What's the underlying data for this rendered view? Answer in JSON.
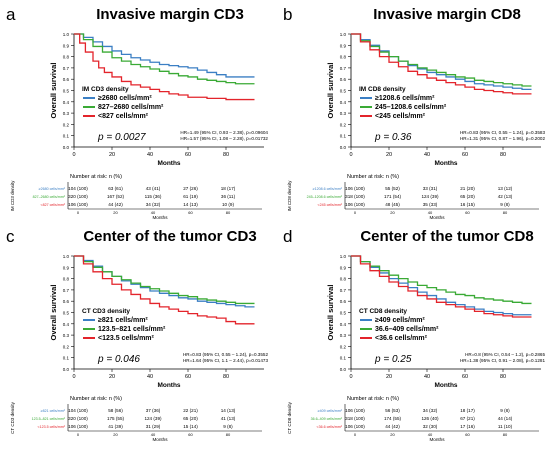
{
  "chart_data": [
    {
      "type": "line",
      "panel_label": "a",
      "title": "Invasive margin CD3",
      "xlabel": "Months",
      "ylabel": "Overall survival",
      "xlim": [
        0,
        100
      ],
      "ylim": [
        0,
        1.0
      ],
      "xticks": [
        "0",
        "20",
        "40",
        "60",
        "80"
      ],
      "yticks": [
        "0.0",
        "0.1",
        "0.2",
        "0.3",
        "0.4",
        "0.5",
        "0.6",
        "0.7",
        "0.8",
        "0.9",
        "1.0"
      ],
      "legend_title": "IM CD3 density",
      "series": [
        {
          "name": "≥2680 cells/mm²",
          "color": "#3b7fc4",
          "x": [
            0,
            5,
            10,
            15,
            20,
            25,
            30,
            35,
            40,
            45,
            50,
            55,
            60,
            65,
            70,
            75,
            80,
            85,
            90,
            95
          ],
          "y": [
            1.0,
            0.97,
            0.93,
            0.89,
            0.85,
            0.82,
            0.79,
            0.77,
            0.75,
            0.73,
            0.72,
            0.71,
            0.7,
            0.68,
            0.66,
            0.64,
            0.62,
            0.62,
            0.62,
            0.62
          ]
        },
        {
          "name": "827–2680 cells/mm²",
          "color": "#3aaa35",
          "x": [
            0,
            5,
            10,
            15,
            20,
            25,
            30,
            35,
            40,
            45,
            50,
            55,
            60,
            65,
            70,
            75,
            80,
            85,
            90,
            95
          ],
          "y": [
            1.0,
            0.95,
            0.89,
            0.84,
            0.79,
            0.76,
            0.73,
            0.71,
            0.69,
            0.67,
            0.65,
            0.63,
            0.62,
            0.6,
            0.59,
            0.58,
            0.57,
            0.56,
            0.56,
            0.56
          ]
        },
        {
          "name": "<827 cells/mm²",
          "color": "#e3242b",
          "x": [
            0,
            3,
            6,
            10,
            13,
            16,
            20,
            25,
            30,
            35,
            40,
            45,
            50,
            55,
            60,
            70,
            80,
            95
          ],
          "y": [
            1.0,
            0.92,
            0.84,
            0.76,
            0.7,
            0.66,
            0.62,
            0.58,
            0.55,
            0.53,
            0.51,
            0.49,
            0.47,
            0.46,
            0.44,
            0.43,
            0.42,
            0.42
          ]
        }
      ],
      "p_value": "p = 0.0027",
      "hr_lines": [
        "HR=1.49 (95% CI, 0.93 – 2.38), p=0.09604",
        "HR=1.57 (95% CI, 1.08 – 2.28), p=0.01732"
      ],
      "risk_title": "Number at risk: n (%)",
      "risk_axis_label": "IM CD3 density",
      "risk_rows": [
        {
          "label": "≥2680 cells/mm²",
          "color": "#3b7fc4",
          "values": [
            "104 (100)",
            "63 (61)",
            "43 (41)",
            "27 (26)",
            "18 (17)"
          ]
        },
        {
          "label": "827–2680 cells/mm²",
          "color": "#3aaa35",
          "values": [
            "320 (100)",
            "167 (52)",
            "115 (36)",
            "61 (19)",
            "36 (11)"
          ]
        },
        {
          "label": "<827 cells/mm²",
          "color": "#e3242b",
          "values": [
            "106 (100)",
            "44 (42)",
            "34 (32)",
            "14 (13)",
            "10 (9)"
          ]
        }
      ],
      "risk_xlabel": "Months",
      "risk_xticks": [
        "0",
        "20",
        "40",
        "60",
        "80"
      ]
    },
    {
      "type": "line",
      "panel_label": "b",
      "title": "Invasive margin CD8",
      "xlabel": "Months",
      "ylabel": "Overall survival",
      "xlim": [
        0,
        100
      ],
      "ylim": [
        0,
        1.0
      ],
      "xticks": [
        "0",
        "20",
        "40",
        "60",
        "80"
      ],
      "yticks": [
        "0.0",
        "0.1",
        "0.2",
        "0.3",
        "0.4",
        "0.5",
        "0.6",
        "0.7",
        "0.8",
        "0.9",
        "1.0"
      ],
      "legend_title": "IM CD8 density",
      "series": [
        {
          "name": "≥1208.6 cells/mm²",
          "color": "#3b7fc4",
          "x": [
            0,
            5,
            10,
            15,
            20,
            25,
            30,
            35,
            40,
            45,
            50,
            55,
            60,
            65,
            70,
            75,
            80,
            85,
            90,
            95
          ],
          "y": [
            1.0,
            0.95,
            0.9,
            0.85,
            0.8,
            0.76,
            0.72,
            0.69,
            0.66,
            0.64,
            0.62,
            0.6,
            0.58,
            0.56,
            0.55,
            0.54,
            0.53,
            0.52,
            0.51,
            0.51
          ]
        },
        {
          "name": "245–1208.6 cells/mm²",
          "color": "#3aaa35",
          "x": [
            0,
            5,
            10,
            15,
            20,
            25,
            30,
            35,
            40,
            45,
            50,
            55,
            60,
            65,
            70,
            75,
            80,
            85,
            90,
            95
          ],
          "y": [
            1.0,
            0.94,
            0.89,
            0.84,
            0.8,
            0.76,
            0.73,
            0.7,
            0.68,
            0.66,
            0.64,
            0.62,
            0.61,
            0.59,
            0.58,
            0.57,
            0.56,
            0.55,
            0.54,
            0.54
          ]
        },
        {
          "name": "<245 cells/mm²",
          "color": "#e3242b",
          "x": [
            0,
            5,
            10,
            15,
            20,
            25,
            30,
            35,
            40,
            45,
            50,
            55,
            60,
            65,
            70,
            75,
            80,
            85,
            90,
            95
          ],
          "y": [
            1.0,
            0.93,
            0.86,
            0.8,
            0.75,
            0.71,
            0.67,
            0.64,
            0.61,
            0.59,
            0.57,
            0.55,
            0.53,
            0.51,
            0.5,
            0.49,
            0.48,
            0.47,
            0.47,
            0.47
          ]
        }
      ],
      "p_value": "p = 0.36",
      "hr_lines": [
        "HR=0.83 (95% CI, 0.55 – 1.24), p=0.3583",
        "HR=1.31 (95% CI, 0.87 – 1.96), p=0.2002"
      ],
      "risk_title": "Number at risk: n (%)",
      "risk_axis_label": "IM CD8 density",
      "risk_rows": [
        {
          "label": "≥1208.6 cells/mm²",
          "color": "#3b7fc4",
          "values": [
            "106 (100)",
            "55 (52)",
            "33 (31)",
            "21 (20)",
            "13 (12)"
          ]
        },
        {
          "label": "245–1208.6 cells/mm²",
          "color": "#3aaa35",
          "values": [
            "318 (100)",
            "171 (54)",
            "124 (39)",
            "65 (20)",
            "42 (13)"
          ]
        },
        {
          "label": "<245 cells/mm²",
          "color": "#e3242b",
          "values": [
            "106 (100)",
            "48 (45)",
            "35 (33)",
            "16 (15)",
            "9 (8)"
          ]
        }
      ],
      "risk_xlabel": "Months",
      "risk_xticks": [
        "0",
        "20",
        "40",
        "60",
        "80"
      ]
    },
    {
      "type": "line",
      "panel_label": "c",
      "title": "Center of the tumor CD3",
      "xlabel": "Months",
      "ylabel": "Overall survival",
      "xlim": [
        0,
        100
      ],
      "ylim": [
        0,
        1.0
      ],
      "xticks": [
        "0",
        "20",
        "40",
        "60",
        "80"
      ],
      "yticks": [
        "0.0",
        "0.1",
        "0.2",
        "0.3",
        "0.4",
        "0.5",
        "0.6",
        "0.7",
        "0.8",
        "0.9",
        "1.0"
      ],
      "legend_title": "CT CD3 density",
      "series": [
        {
          "name": "≥821 cells/mm²",
          "color": "#3b7fc4",
          "x": [
            0,
            5,
            10,
            15,
            20,
            25,
            30,
            35,
            40,
            45,
            50,
            55,
            60,
            65,
            70,
            75,
            80,
            85,
            90,
            95
          ],
          "y": [
            1.0,
            0.96,
            0.91,
            0.86,
            0.82,
            0.78,
            0.75,
            0.72,
            0.69,
            0.67,
            0.65,
            0.63,
            0.62,
            0.6,
            0.59,
            0.58,
            0.57,
            0.56,
            0.55,
            0.55
          ]
        },
        {
          "name": "123.5–821 cells/mm²",
          "color": "#3aaa35",
          "x": [
            0,
            5,
            10,
            15,
            20,
            25,
            30,
            35,
            40,
            45,
            50,
            55,
            60,
            65,
            70,
            75,
            80,
            85,
            90,
            95
          ],
          "y": [
            1.0,
            0.95,
            0.9,
            0.86,
            0.82,
            0.79,
            0.76,
            0.73,
            0.71,
            0.69,
            0.67,
            0.65,
            0.64,
            0.62,
            0.61,
            0.6,
            0.59,
            0.58,
            0.58,
            0.58
          ]
        },
        {
          "name": "<123.5 cells/mm²",
          "color": "#e3242b",
          "x": [
            0,
            5,
            10,
            15,
            20,
            25,
            30,
            35,
            40,
            45,
            50,
            55,
            60,
            65,
            70,
            75,
            80,
            85,
            90,
            95
          ],
          "y": [
            1.0,
            0.93,
            0.86,
            0.8,
            0.75,
            0.7,
            0.66,
            0.62,
            0.58,
            0.55,
            0.53,
            0.51,
            0.49,
            0.47,
            0.46,
            0.45,
            0.42,
            0.4,
            0.4,
            0.4
          ]
        }
      ],
      "p_value": "p = 0.046",
      "hr_lines": [
        "HR=0.83 (95% CI, 0.55 – 1.24), p=0.3552",
        "HR=1.64 (95% CI, 1.1 – 2.44), p=0.01473"
      ],
      "risk_title": "Number at risk: n (%)",
      "risk_axis_label": "CT CD3 density",
      "risk_rows": [
        {
          "label": "≥821 cells/mm²",
          "color": "#3b7fc4",
          "values": [
            "104 (100)",
            "58 (56)",
            "37 (36)",
            "22 (21)",
            "14 (13)"
          ]
        },
        {
          "label": "123.5–821 cells/mm²",
          "color": "#3aaa35",
          "values": [
            "320 (100)",
            "175 (55)",
            "124 (39)",
            "65 (20)",
            "41 (13)"
          ]
        },
        {
          "label": "<123.5 cells/mm²",
          "color": "#e3242b",
          "values": [
            "106 (100)",
            "41 (39)",
            "31 (29)",
            "15 (14)",
            "9 (8)"
          ]
        }
      ],
      "risk_xlabel": "Months",
      "risk_xticks": [
        "0",
        "20",
        "40",
        "60",
        "80"
      ]
    },
    {
      "type": "line",
      "panel_label": "d",
      "title": "Center of the tumor CD8",
      "xlabel": "Months",
      "ylabel": "Overall survival",
      "xlim": [
        0,
        100
      ],
      "ylim": [
        0,
        1.0
      ],
      "xticks": [
        "0",
        "20",
        "40",
        "60",
        "80"
      ],
      "yticks": [
        "0.0",
        "0.1",
        "0.2",
        "0.3",
        "0.4",
        "0.5",
        "0.6",
        "0.7",
        "0.8",
        "0.9",
        "1.0"
      ],
      "legend_title": "CT CD8 density",
      "series": [
        {
          "name": "≥409 cells/mm²",
          "color": "#3b7fc4",
          "x": [
            0,
            5,
            10,
            15,
            20,
            25,
            30,
            35,
            40,
            45,
            50,
            55,
            60,
            65,
            70,
            75,
            80,
            85,
            90,
            95
          ],
          "y": [
            1.0,
            0.95,
            0.9,
            0.85,
            0.8,
            0.76,
            0.72,
            0.68,
            0.65,
            0.62,
            0.59,
            0.57,
            0.55,
            0.53,
            0.51,
            0.5,
            0.49,
            0.48,
            0.48,
            0.48
          ]
        },
        {
          "name": "36.6–409 cells/mm²",
          "color": "#3aaa35",
          "x": [
            0,
            5,
            10,
            15,
            20,
            25,
            30,
            35,
            40,
            45,
            50,
            55,
            60,
            65,
            70,
            75,
            80,
            85,
            90,
            95
          ],
          "y": [
            1.0,
            0.95,
            0.91,
            0.87,
            0.83,
            0.8,
            0.77,
            0.74,
            0.72,
            0.7,
            0.68,
            0.66,
            0.65,
            0.63,
            0.62,
            0.61,
            0.6,
            0.59,
            0.58,
            0.58
          ]
        },
        {
          "name": "<36.6 cells/mm²",
          "color": "#e3242b",
          "x": [
            0,
            5,
            10,
            15,
            20,
            25,
            30,
            35,
            40,
            45,
            50,
            55,
            60,
            65,
            70,
            75,
            80,
            85,
            90,
            95
          ],
          "y": [
            1.0,
            0.93,
            0.87,
            0.82,
            0.77,
            0.73,
            0.69,
            0.65,
            0.62,
            0.59,
            0.57,
            0.55,
            0.53,
            0.51,
            0.49,
            0.48,
            0.47,
            0.46,
            0.46,
            0.46
          ]
        }
      ],
      "p_value": "p = 0.25",
      "hr_lines": [
        "HR=0.8 (95% CI, 0.54 – 1.2), p=0.2865",
        "HR=1.38 (95% CI, 0.91 – 2.08), p=0.1281"
      ],
      "risk_title": "Number at risk: n (%)",
      "risk_axis_label": "CT CD8 density",
      "risk_rows": [
        {
          "label": "≥409 cells/mm²",
          "color": "#3b7fc4",
          "values": [
            "106 (100)",
            "56 (53)",
            "34 (32)",
            "18 (17)",
            "9 (8)"
          ]
        },
        {
          "label": "36.6–409 cells/mm²",
          "color": "#3aaa35",
          "values": [
            "318 (100)",
            "174 (55)",
            "126 (40)",
            "67 (21)",
            "44 (14)"
          ]
        },
        {
          "label": "<36.6 cells/mm²",
          "color": "#e3242b",
          "values": [
            "106 (100)",
            "44 (42)",
            "32 (30)",
            "17 (16)",
            "11 (10)"
          ]
        }
      ],
      "risk_xlabel": "Months",
      "risk_xticks": [
        "0",
        "20",
        "40",
        "60",
        "80"
      ]
    }
  ]
}
